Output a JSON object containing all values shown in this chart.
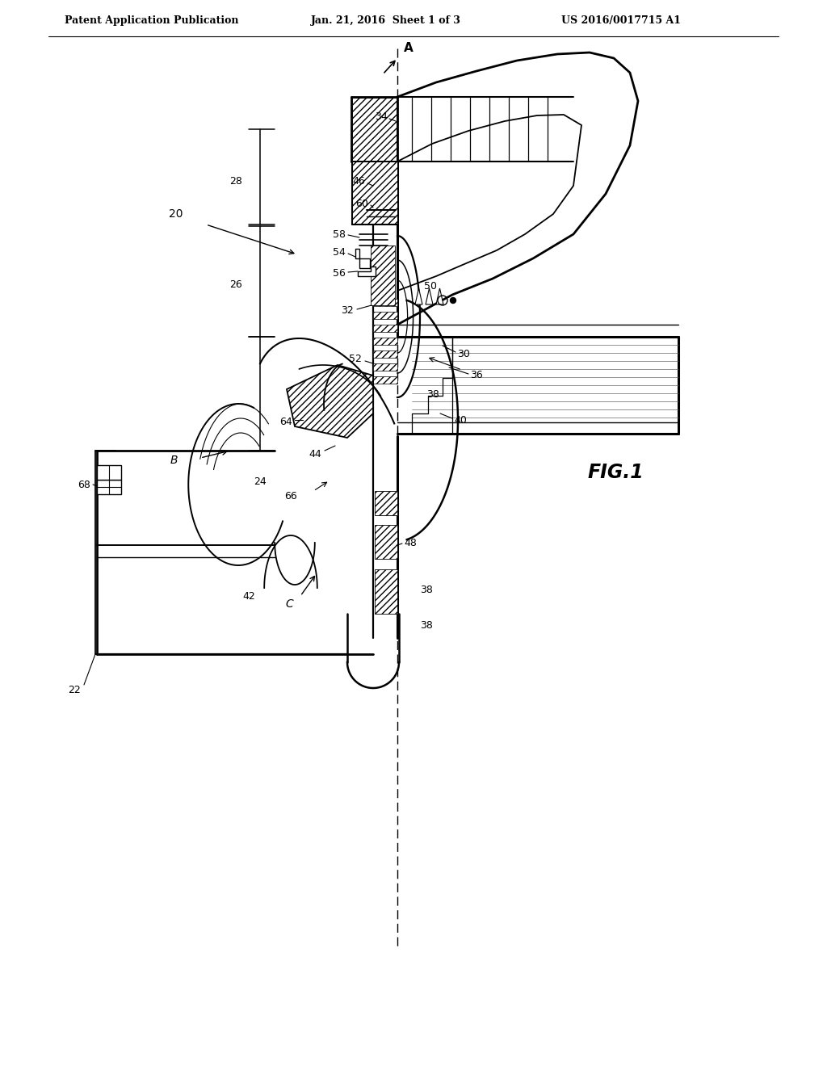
{
  "background_color": "#ffffff",
  "line_color": "#000000",
  "header_left": "Patent Application Publication",
  "header_center": "Jan. 21, 2016  Sheet 1 of 3",
  "header_right": "US 2016/0017715 A1",
  "figure_label": "FIG.1",
  "axis_label_A": "A",
  "axis_label_B": "B",
  "axis_label_C": "C",
  "ref_numbers": [
    "20",
    "22",
    "24",
    "26",
    "28",
    "30",
    "32",
    "34",
    "36",
    "38",
    "40",
    "42",
    "44",
    "46",
    "48",
    "50",
    "52",
    "54",
    "56",
    "58",
    "60",
    "64",
    "66",
    "68"
  ],
  "hatch_pattern": "////",
  "title_fontsize": 11,
  "label_fontsize": 10,
  "ref_fontsize": 9
}
